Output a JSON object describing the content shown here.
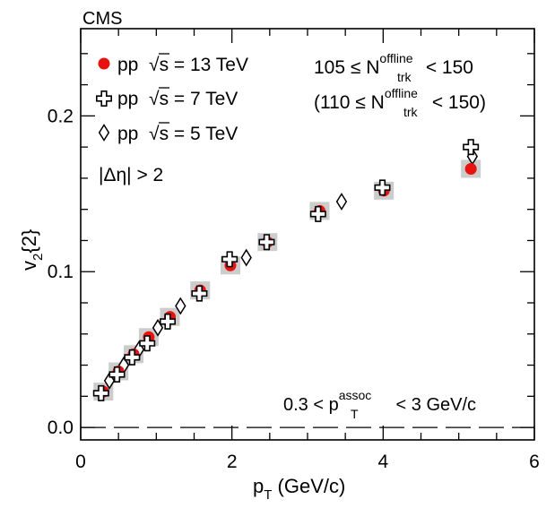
{
  "chart_data": {
    "type": "scatter",
    "experiment": "CMS",
    "x": {
      "label_main": "p",
      "label_sub": "T",
      "label_unit": " (GeV/c)",
      "range": [
        0,
        6
      ],
      "major_ticks": [
        0,
        2,
        4,
        6
      ],
      "tick_labels": [
        "0",
        "2",
        "4",
        "6"
      ],
      "minor_step": 0.5
    },
    "y": {
      "label_main": "v",
      "label_sub": "2",
      "label_tail": "{2}",
      "range": [
        -0.008,
        0.256
      ],
      "major_ticks": [
        0.0,
        0.1,
        0.2
      ],
      "tick_labels": [
        "0.0",
        "0.1",
        "0.2"
      ],
      "minor_step": 0.02
    },
    "series": [
      {
        "name_prefix": "pp  ",
        "energy_text": "s = 13 TeV",
        "marker": "filled-circle",
        "color": "#e8120f",
        "has_sys_boxes": true,
        "points": [
          {
            "x": 0.3,
            "y": 0.023
          },
          {
            "x": 0.5,
            "y": 0.036
          },
          {
            "x": 0.7,
            "y": 0.047
          },
          {
            "x": 0.9,
            "y": 0.058
          },
          {
            "x": 1.18,
            "y": 0.071
          },
          {
            "x": 1.58,
            "y": 0.088
          },
          {
            "x": 1.98,
            "y": 0.104
          },
          {
            "x": 2.47,
            "y": 0.119
          },
          {
            "x": 3.16,
            "y": 0.139
          },
          {
            "x": 4.01,
            "y": 0.152
          },
          {
            "x": 5.16,
            "y": 0.166
          }
        ]
      },
      {
        "name_prefix": "pp  ",
        "energy_text": "s = 7 TeV",
        "marker": "open-cross",
        "color": "#000000",
        "has_sys_boxes": false,
        "points": [
          {
            "x": 0.27,
            "y": 0.022
          },
          {
            "x": 0.48,
            "y": 0.034
          },
          {
            "x": 0.68,
            "y": 0.045
          },
          {
            "x": 0.88,
            "y": 0.054
          },
          {
            "x": 1.15,
            "y": 0.068
          },
          {
            "x": 1.57,
            "y": 0.086
          },
          {
            "x": 1.97,
            "y": 0.108
          },
          {
            "x": 2.46,
            "y": 0.119
          },
          {
            "x": 3.14,
            "y": 0.137
          },
          {
            "x": 3.99,
            "y": 0.154
          },
          {
            "x": 5.16,
            "y": 0.18
          }
        ]
      },
      {
        "name_prefix": "pp  ",
        "energy_text": "s = 5 TeV",
        "marker": "open-diamond",
        "color": "#000000",
        "has_sys_boxes": false,
        "points": [
          {
            "x": 0.38,
            "y": 0.03
          },
          {
            "x": 0.57,
            "y": 0.04
          },
          {
            "x": 0.77,
            "y": 0.05
          },
          {
            "x": 1.02,
            "y": 0.064
          },
          {
            "x": 1.32,
            "y": 0.078
          },
          {
            "x": 2.19,
            "y": 0.109
          },
          {
            "x": 3.45,
            "y": 0.145
          },
          {
            "x": 5.18,
            "y": 0.174
          }
        ]
      }
    ],
    "reference_line": {
      "y": 0.0,
      "style": "dashed"
    },
    "annotations": {
      "eta_cut": "|Δη| > 2",
      "mult_a_left": "105 ≤ N",
      "mult_b_left": "(110 ≤ N",
      "mult_sup": "offline",
      "mult_sub": "trk",
      "mult_a_right": " < 150",
      "mult_b_right": " < 150)",
      "assoc_left": "0.3 < p",
      "assoc_sup": "assoc",
      "assoc_sub": "T",
      "assoc_right": " < 3 GeV/c"
    },
    "legend": {
      "position": "top-left"
    },
    "colors": {
      "sys_box": "#cccccc",
      "axis": "#000000",
      "background": "#ffffff"
    }
  }
}
